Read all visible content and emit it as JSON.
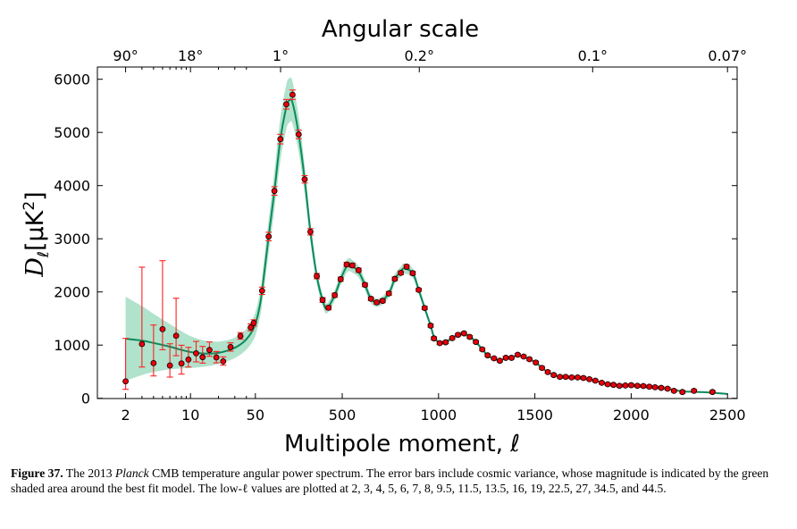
{
  "caption": {
    "label": "Figure 37.",
    "text_1": " The 2013 ",
    "italic": "Planck",
    "text_2": " CMB temperature angular power spectrum. The error bars include cosmic variance, whose magnitude is indicated by the green shaded area around the best fit model. The low-ℓ values are plotted at 2, 3, 4, 5, 6, 7, 8, 9.5, 11.5, 13.5, 16, 19, 22.5, 27, 34.5, and 44.5."
  },
  "chart_data": {
    "type": "scatter",
    "title": "Angular scale",
    "xlabel": "Multipole moment, ℓ",
    "ylabel": {
      "main": "D",
      "sub": "ℓ",
      "unit": "[μK",
      "sup": "2",
      "close": "]"
    },
    "x_scale": "log for ℓ < 50, linear for ℓ ≥ 50",
    "xlim": [
      1,
      2500
    ],
    "ylim": [
      0,
      6240
    ],
    "x_ticks": [
      2,
      10,
      50,
      500,
      1000,
      1500,
      2000,
      2500
    ],
    "x_tick_labels": [
      "2",
      "10",
      "50",
      "500",
      "1000",
      "1500",
      "2000",
      "2500"
    ],
    "y_ticks": [
      0,
      1000,
      2000,
      3000,
      4000,
      5000,
      6000
    ],
    "y_tick_labels": [
      "0",
      "1000",
      "2000",
      "3000",
      "4000",
      "5000",
      "6000"
    ],
    "top_axis": {
      "ticks_at_multipole": [
        2,
        10,
        180,
        900,
        1800,
        2500
      ],
      "labels": [
        "90°",
        "18°",
        "1°",
        "0.2°",
        "0.1°",
        "0.07°"
      ]
    },
    "grid": false,
    "colors": {
      "points": "#e8000b",
      "errorbars": "#ff2020",
      "model": "#0b8a5a",
      "band": "#8fd6b6"
    },
    "low_l_points": [
      {
        "l": 2,
        "D": 319,
        "lo": 168,
        "hi": 1126
      },
      {
        "l": 3,
        "D": 1020,
        "lo": 588,
        "hi": 2466
      },
      {
        "l": 4,
        "D": 661,
        "lo": 420,
        "hi": 1378
      },
      {
        "l": 5,
        "D": 1300,
        "lo": 913,
        "hi": 2588
      },
      {
        "l": 6,
        "D": 617,
        "lo": 398,
        "hi": 1025
      },
      {
        "l": 7,
        "D": 1176,
        "lo": 801,
        "hi": 1882
      },
      {
        "l": 8,
        "D": 655,
        "lo": 454,
        "hi": 997
      },
      {
        "l": 9.5,
        "D": 728,
        "lo": 588,
        "hi": 958
      },
      {
        "l": 11.5,
        "D": 846,
        "lo": 684,
        "hi": 1070
      },
      {
        "l": 13.5,
        "D": 773,
        "lo": 661,
        "hi": 975
      },
      {
        "l": 16,
        "D": 908,
        "lo": 790,
        "hi": 1059
      },
      {
        "l": 19,
        "D": 768,
        "lo": 667,
        "hi": 879
      },
      {
        "l": 22.5,
        "D": 694,
        "lo": 622,
        "hi": 778
      },
      {
        "l": 27,
        "D": 963,
        "lo": 886,
        "hi": 1042
      },
      {
        "l": 34.5,
        "D": 1171,
        "lo": 1110,
        "hi": 1235
      },
      {
        "l": 44.5,
        "D": 1333,
        "lo": 1270,
        "hi": 1400
      }
    ],
    "high_l_points": [
      [
        48,
        1417,
        60
      ],
      [
        84,
        2022,
        70
      ],
      [
        118,
        3042,
        80
      ],
      [
        148,
        3899,
        80
      ],
      [
        179,
        4874,
        90
      ],
      [
        210,
        5529,
        90
      ],
      [
        242,
        5709,
        90
      ],
      [
        274,
        4963,
        80
      ],
      [
        305,
        4118,
        70
      ],
      [
        335,
        3131,
        60
      ],
      [
        368,
        2297,
        50
      ],
      [
        398,
        1849,
        45
      ],
      [
        429,
        1703,
        40
      ],
      [
        461,
        1938,
        40
      ],
      [
        492,
        2240,
        40
      ],
      [
        523,
        2516,
        40
      ],
      [
        553,
        2499,
        40
      ],
      [
        585,
        2409,
        40
      ],
      [
        618,
        2134,
        35
      ],
      [
        649,
        1871,
        35
      ],
      [
        679,
        1804,
        35
      ],
      [
        710,
        1832,
        35
      ],
      [
        742,
        1972,
        35
      ],
      [
        773,
        2246,
        35
      ],
      [
        804,
        2358,
        35
      ],
      [
        834,
        2476,
        35
      ],
      [
        866,
        2353,
        35
      ],
      [
        897,
        2039,
        30
      ],
      [
        928,
        1697,
        30
      ],
      [
        959,
        1366,
        30
      ],
      [
        976,
        1126,
        30
      ],
      [
        1006,
        1037,
        25
      ],
      [
        1037,
        1053,
        25
      ],
      [
        1071,
        1131,
        25
      ],
      [
        1101,
        1193,
        25
      ],
      [
        1132,
        1221,
        25
      ],
      [
        1162,
        1154,
        25
      ],
      [
        1194,
        1059,
        25
      ],
      [
        1227,
        919,
        25
      ],
      [
        1255,
        807,
        25
      ],
      [
        1288,
        751,
        25
      ],
      [
        1318,
        706,
        25
      ],
      [
        1349,
        761,
        25
      ],
      [
        1379,
        761,
        25
      ],
      [
        1411,
        818,
        25
      ],
      [
        1442,
        785,
        25
      ],
      [
        1472,
        734,
        25
      ],
      [
        1505,
        672,
        25
      ],
      [
        1537,
        571,
        25
      ],
      [
        1567,
        493,
        25
      ],
      [
        1598,
        437,
        25
      ],
      [
        1630,
        403,
        25
      ],
      [
        1660,
        403,
        25
      ],
      [
        1691,
        392,
        25
      ],
      [
        1722,
        392,
        25
      ],
      [
        1752,
        381,
        25
      ],
      [
        1783,
        358,
        25
      ],
      [
        1814,
        331,
        25
      ],
      [
        1847,
        291,
        25
      ],
      [
        1878,
        264,
        25
      ],
      [
        1908,
        252,
        25
      ],
      [
        1939,
        235,
        25
      ],
      [
        1970,
        241,
        25
      ],
      [
        2000,
        246,
        25
      ],
      [
        2032,
        235,
        25
      ],
      [
        2063,
        230,
        25
      ],
      [
        2094,
        218,
        25
      ],
      [
        2124,
        207,
        25
      ],
      [
        2156,
        196,
        25
      ],
      [
        2189,
        180,
        25
      ],
      [
        2222,
        140,
        25
      ],
      [
        2266,
        118,
        25
      ],
      [
        2326,
        140,
        25
      ],
      [
        2422,
        118,
        25
      ]
    ],
    "model": [
      [
        2,
        1120
      ],
      [
        3,
        1085
      ],
      [
        4,
        1040
      ],
      [
        6,
        970
      ],
      [
        8,
        910
      ],
      [
        10,
        870
      ],
      [
        13,
        845
      ],
      [
        16,
        840
      ],
      [
        20,
        855
      ],
      [
        25,
        895
      ],
      [
        30,
        950
      ],
      [
        35,
        1020
      ],
      [
        40,
        1110
      ],
      [
        45,
        1230
      ],
      [
        50,
        1400
      ],
      [
        70,
        1700
      ],
      [
        84,
        2022
      ],
      [
        118,
        3042
      ],
      [
        148,
        3899
      ],
      [
        179,
        4874
      ],
      [
        210,
        5480
      ],
      [
        225,
        5600
      ],
      [
        242,
        5560
      ],
      [
        274,
        4963
      ],
      [
        305,
        4118
      ],
      [
        335,
        3131
      ],
      [
        368,
        2297
      ],
      [
        398,
        1849
      ],
      [
        420,
        1690
      ],
      [
        461,
        1938
      ],
      [
        492,
        2240
      ],
      [
        523,
        2480
      ],
      [
        540,
        2510
      ],
      [
        553,
        2480
      ],
      [
        585,
        2380
      ],
      [
        618,
        2134
      ],
      [
        649,
        1871
      ],
      [
        690,
        1800
      ],
      [
        742,
        1972
      ],
      [
        773,
        2246
      ],
      [
        804,
        2380
      ],
      [
        820,
        2440
      ],
      [
        866,
        2353
      ],
      [
        897,
        2039
      ],
      [
        928,
        1697
      ],
      [
        959,
        1366
      ],
      [
        976,
        1160
      ],
      [
        1006,
        1040
      ],
      [
        1037,
        1060
      ],
      [
        1071,
        1131
      ],
      [
        1101,
        1193
      ],
      [
        1125,
        1215
      ],
      [
        1162,
        1160
      ],
      [
        1194,
        1059
      ],
      [
        1227,
        919
      ],
      [
        1255,
        807
      ],
      [
        1288,
        740
      ],
      [
        1318,
        715
      ],
      [
        1349,
        755
      ],
      [
        1379,
        775
      ],
      [
        1411,
        800
      ],
      [
        1442,
        780
      ],
      [
        1472,
        734
      ],
      [
        1505,
        672
      ],
      [
        1537,
        571
      ],
      [
        1567,
        493
      ],
      [
        1598,
        437
      ],
      [
        1630,
        410
      ],
      [
        1691,
        395
      ],
      [
        1752,
        375
      ],
      [
        1814,
        330
      ],
      [
        1878,
        268
      ],
      [
        1939,
        240
      ],
      [
        2000,
        240
      ],
      [
        2063,
        228
      ],
      [
        2124,
        207
      ],
      [
        2189,
        180
      ],
      [
        2266,
        130
      ],
      [
        2326,
        120
      ],
      [
        2422,
        105
      ],
      [
        2500,
        80
      ]
    ]
  }
}
